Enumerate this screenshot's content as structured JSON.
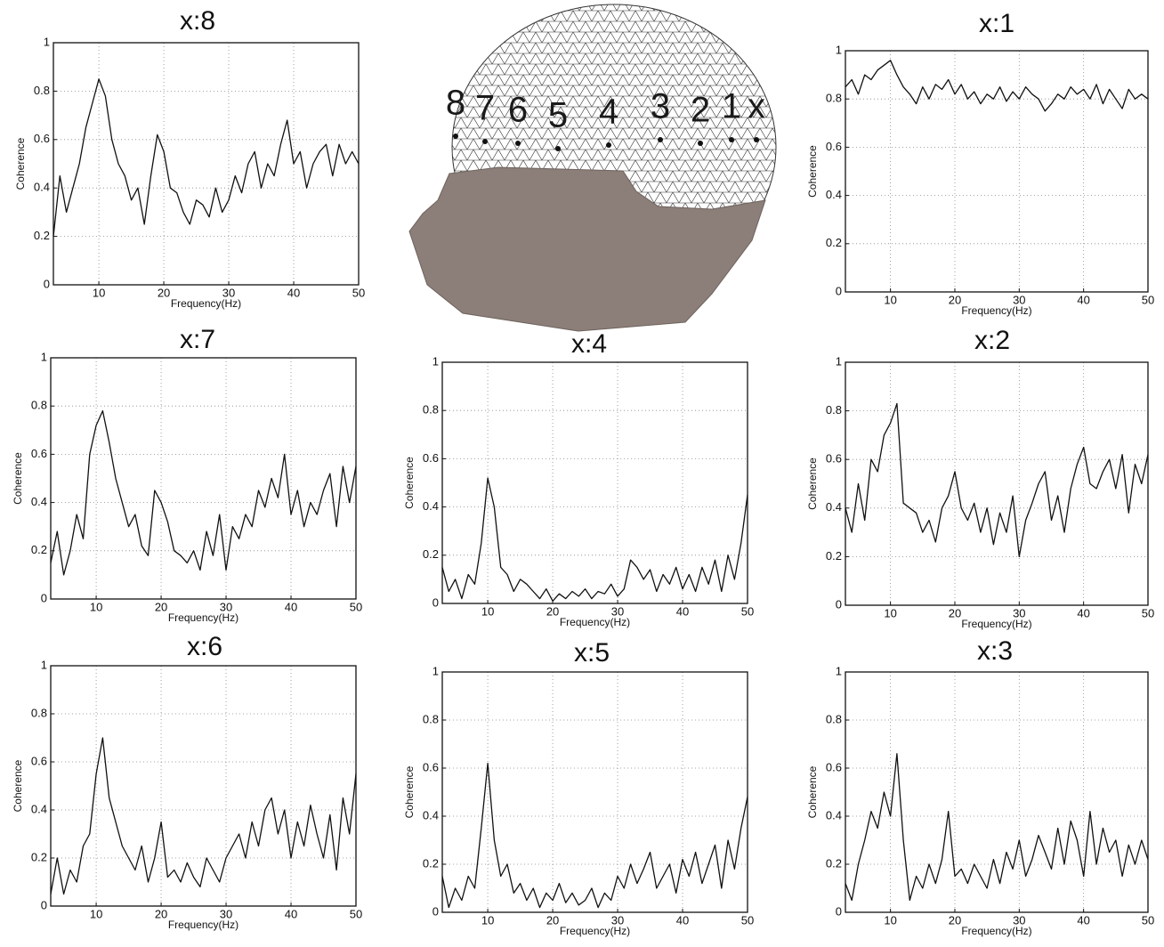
{
  "chart_data": [
    {
      "type": "line",
      "title": "x:8",
      "xlabel": "Frequency(Hz)",
      "ylabel": "Coherence",
      "color": "#111111",
      "grid": true,
      "xlim": [
        3,
        50
      ],
      "ylim": [
        0,
        1
      ],
      "xticks": [
        10,
        20,
        30,
        40,
        50
      ],
      "yticks": [
        0,
        0.2,
        0.4,
        0.6,
        0.8,
        1
      ],
      "x": [
        3,
        4,
        5,
        6,
        7,
        8,
        9,
        10,
        11,
        12,
        13,
        14,
        15,
        16,
        17,
        18,
        19,
        20,
        21,
        22,
        23,
        24,
        25,
        26,
        27,
        28,
        29,
        30,
        31,
        32,
        33,
        34,
        35,
        36,
        37,
        38,
        39,
        40,
        41,
        42,
        43,
        44,
        45,
        46,
        47,
        48,
        49,
        50
      ],
      "values": [
        0.2,
        0.45,
        0.3,
        0.4,
        0.5,
        0.65,
        0.75,
        0.85,
        0.78,
        0.6,
        0.5,
        0.45,
        0.35,
        0.4,
        0.25,
        0.45,
        0.62,
        0.55,
        0.4,
        0.38,
        0.3,
        0.25,
        0.35,
        0.33,
        0.28,
        0.4,
        0.3,
        0.35,
        0.45,
        0.38,
        0.5,
        0.55,
        0.4,
        0.5,
        0.45,
        0.58,
        0.68,
        0.5,
        0.55,
        0.4,
        0.5,
        0.55,
        0.58,
        0.45,
        0.58,
        0.5,
        0.55,
        0.5
      ]
    },
    {
      "type": "line",
      "title": "x:1",
      "xlabel": "Frequency(Hz)",
      "ylabel": "Coherence",
      "color": "#111111",
      "grid": true,
      "xlim": [
        3,
        50
      ],
      "ylim": [
        0,
        1
      ],
      "xticks": [
        10,
        20,
        30,
        40,
        50
      ],
      "yticks": [
        0,
        0.2,
        0.4,
        0.6,
        0.8,
        1
      ],
      "x": [
        3,
        4,
        5,
        6,
        7,
        8,
        9,
        10,
        11,
        12,
        13,
        14,
        15,
        16,
        17,
        18,
        19,
        20,
        21,
        22,
        23,
        24,
        25,
        26,
        27,
        28,
        29,
        30,
        31,
        32,
        33,
        34,
        35,
        36,
        37,
        38,
        39,
        40,
        41,
        42,
        43,
        44,
        45,
        46,
        47,
        48,
        49,
        50
      ],
      "values": [
        0.85,
        0.88,
        0.82,
        0.9,
        0.88,
        0.92,
        0.94,
        0.96,
        0.9,
        0.85,
        0.82,
        0.78,
        0.85,
        0.8,
        0.86,
        0.84,
        0.88,
        0.82,
        0.86,
        0.8,
        0.83,
        0.78,
        0.82,
        0.8,
        0.85,
        0.79,
        0.83,
        0.8,
        0.85,
        0.82,
        0.8,
        0.75,
        0.78,
        0.82,
        0.8,
        0.85,
        0.82,
        0.84,
        0.8,
        0.86,
        0.78,
        0.84,
        0.8,
        0.76,
        0.84,
        0.8,
        0.82,
        0.8
      ]
    },
    {
      "type": "line",
      "title": "x:7",
      "xlabel": "Frequency(Hz)",
      "ylabel": "Coherence",
      "color": "#111111",
      "grid": true,
      "xlim": [
        3,
        50
      ],
      "ylim": [
        0,
        1
      ],
      "xticks": [
        10,
        20,
        30,
        40,
        50
      ],
      "yticks": [
        0,
        0.2,
        0.4,
        0.6,
        0.8,
        1
      ],
      "x": [
        3,
        4,
        5,
        6,
        7,
        8,
        9,
        10,
        11,
        12,
        13,
        14,
        15,
        16,
        17,
        18,
        19,
        20,
        21,
        22,
        23,
        24,
        25,
        26,
        27,
        28,
        29,
        30,
        31,
        32,
        33,
        34,
        35,
        36,
        37,
        38,
        39,
        40,
        41,
        42,
        43,
        44,
        45,
        46,
        47,
        48,
        49,
        50
      ],
      "values": [
        0.15,
        0.28,
        0.1,
        0.2,
        0.35,
        0.25,
        0.6,
        0.72,
        0.78,
        0.65,
        0.5,
        0.4,
        0.3,
        0.35,
        0.22,
        0.18,
        0.45,
        0.4,
        0.32,
        0.2,
        0.18,
        0.15,
        0.2,
        0.12,
        0.28,
        0.18,
        0.35,
        0.12,
        0.3,
        0.25,
        0.35,
        0.3,
        0.45,
        0.38,
        0.5,
        0.42,
        0.6,
        0.35,
        0.45,
        0.3,
        0.4,
        0.35,
        0.45,
        0.52,
        0.3,
        0.55,
        0.4,
        0.55
      ]
    },
    {
      "type": "line",
      "title": "x:4",
      "xlabel": "Frequency(Hz)",
      "ylabel": "Coherence",
      "color": "#111111",
      "grid": true,
      "xlim": [
        3,
        50
      ],
      "ylim": [
        0,
        1
      ],
      "xticks": [
        10,
        20,
        30,
        40,
        50
      ],
      "yticks": [
        0,
        0.2,
        0.4,
        0.6,
        0.8,
        1
      ],
      "x": [
        3,
        4,
        5,
        6,
        7,
        8,
        9,
        10,
        11,
        12,
        13,
        14,
        15,
        16,
        17,
        18,
        19,
        20,
        21,
        22,
        23,
        24,
        25,
        26,
        27,
        28,
        29,
        30,
        31,
        32,
        33,
        34,
        35,
        36,
        37,
        38,
        39,
        40,
        41,
        42,
        43,
        44,
        45,
        46,
        47,
        48,
        49,
        50
      ],
      "values": [
        0.15,
        0.05,
        0.1,
        0.02,
        0.12,
        0.08,
        0.25,
        0.52,
        0.4,
        0.15,
        0.12,
        0.05,
        0.1,
        0.08,
        0.05,
        0.02,
        0.06,
        0.01,
        0.04,
        0.02,
        0.05,
        0.03,
        0.06,
        0.02,
        0.05,
        0.04,
        0.08,
        0.03,
        0.06,
        0.18,
        0.15,
        0.1,
        0.14,
        0.05,
        0.12,
        0.08,
        0.15,
        0.06,
        0.12,
        0.05,
        0.15,
        0.08,
        0.18,
        0.05,
        0.2,
        0.1,
        0.25,
        0.45
      ]
    },
    {
      "type": "line",
      "title": "x:2",
      "xlabel": "Frequency(Hz)",
      "ylabel": "Coherence",
      "color": "#111111",
      "grid": true,
      "xlim": [
        3,
        50
      ],
      "ylim": [
        0,
        1
      ],
      "xticks": [
        10,
        20,
        30,
        40,
        50
      ],
      "yticks": [
        0,
        0.2,
        0.4,
        0.6,
        0.8,
        1
      ],
      "x": [
        3,
        4,
        5,
        6,
        7,
        8,
        9,
        10,
        11,
        12,
        13,
        14,
        15,
        16,
        17,
        18,
        19,
        20,
        21,
        22,
        23,
        24,
        25,
        26,
        27,
        28,
        29,
        30,
        31,
        32,
        33,
        34,
        35,
        36,
        37,
        38,
        39,
        40,
        41,
        42,
        43,
        44,
        45,
        46,
        47,
        48,
        49,
        50
      ],
      "values": [
        0.4,
        0.3,
        0.5,
        0.35,
        0.6,
        0.55,
        0.7,
        0.75,
        0.83,
        0.42,
        0.4,
        0.38,
        0.3,
        0.35,
        0.26,
        0.4,
        0.45,
        0.55,
        0.4,
        0.35,
        0.42,
        0.3,
        0.4,
        0.25,
        0.38,
        0.3,
        0.45,
        0.2,
        0.35,
        0.42,
        0.5,
        0.55,
        0.35,
        0.45,
        0.3,
        0.48,
        0.58,
        0.65,
        0.5,
        0.48,
        0.55,
        0.6,
        0.48,
        0.62,
        0.38,
        0.58,
        0.5,
        0.62
      ]
    },
    {
      "type": "line",
      "title": "x:6",
      "xlabel": "Frequency(Hz)",
      "ylabel": "Coherence",
      "color": "#111111",
      "grid": true,
      "xlim": [
        3,
        50
      ],
      "ylim": [
        0,
        1
      ],
      "xticks": [
        10,
        20,
        30,
        40,
        50
      ],
      "yticks": [
        0,
        0.2,
        0.4,
        0.6,
        0.8,
        1
      ],
      "x": [
        3,
        4,
        5,
        6,
        7,
        8,
        9,
        10,
        11,
        12,
        13,
        14,
        15,
        16,
        17,
        18,
        19,
        20,
        21,
        22,
        23,
        24,
        25,
        26,
        27,
        28,
        29,
        30,
        31,
        32,
        33,
        34,
        35,
        36,
        37,
        38,
        39,
        40,
        41,
        42,
        43,
        44,
        45,
        46,
        47,
        48,
        49,
        50
      ],
      "values": [
        0.05,
        0.2,
        0.05,
        0.15,
        0.1,
        0.25,
        0.3,
        0.55,
        0.7,
        0.45,
        0.35,
        0.25,
        0.2,
        0.15,
        0.25,
        0.1,
        0.2,
        0.35,
        0.12,
        0.15,
        0.1,
        0.18,
        0.12,
        0.08,
        0.2,
        0.15,
        0.1,
        0.2,
        0.25,
        0.3,
        0.2,
        0.35,
        0.25,
        0.4,
        0.45,
        0.3,
        0.4,
        0.2,
        0.35,
        0.25,
        0.42,
        0.3,
        0.2,
        0.38,
        0.15,
        0.45,
        0.3,
        0.55
      ]
    },
    {
      "type": "line",
      "title": "x:5",
      "xlabel": "Frequency(Hz)",
      "ylabel": "Coherence",
      "color": "#111111",
      "grid": true,
      "xlim": [
        3,
        50
      ],
      "ylim": [
        0,
        1
      ],
      "xticks": [
        10,
        20,
        30,
        40,
        50
      ],
      "yticks": [
        0,
        0.2,
        0.4,
        0.6,
        0.8,
        1
      ],
      "x": [
        3,
        4,
        5,
        6,
        7,
        8,
        9,
        10,
        11,
        12,
        13,
        14,
        15,
        16,
        17,
        18,
        19,
        20,
        21,
        22,
        23,
        24,
        25,
        26,
        27,
        28,
        29,
        30,
        31,
        32,
        33,
        34,
        35,
        36,
        37,
        38,
        39,
        40,
        41,
        42,
        43,
        44,
        45,
        46,
        47,
        48,
        49,
        50
      ],
      "values": [
        0.15,
        0.02,
        0.1,
        0.05,
        0.15,
        0.1,
        0.35,
        0.62,
        0.3,
        0.15,
        0.2,
        0.08,
        0.12,
        0.05,
        0.1,
        0.02,
        0.08,
        0.05,
        0.12,
        0.04,
        0.08,
        0.03,
        0.05,
        0.1,
        0.02,
        0.08,
        0.05,
        0.15,
        0.1,
        0.2,
        0.12,
        0.18,
        0.25,
        0.1,
        0.15,
        0.2,
        0.08,
        0.22,
        0.15,
        0.25,
        0.12,
        0.2,
        0.28,
        0.1,
        0.3,
        0.18,
        0.35,
        0.48
      ]
    },
    {
      "type": "line",
      "title": "x:3",
      "xlabel": "Frequency(Hz)",
      "ylabel": "Coherence",
      "color": "#111111",
      "grid": true,
      "xlim": [
        3,
        50
      ],
      "ylim": [
        0,
        1
      ],
      "xticks": [
        10,
        20,
        30,
        40,
        50
      ],
      "yticks": [
        0,
        0.2,
        0.4,
        0.6,
        0.8,
        1
      ],
      "x": [
        3,
        4,
        5,
        6,
        7,
        8,
        9,
        10,
        11,
        12,
        13,
        14,
        15,
        16,
        17,
        18,
        19,
        20,
        21,
        22,
        23,
        24,
        25,
        26,
        27,
        28,
        29,
        30,
        31,
        32,
        33,
        34,
        35,
        36,
        37,
        38,
        39,
        40,
        41,
        42,
        43,
        44,
        45,
        46,
        47,
        48,
        49,
        50
      ],
      "values": [
        0.12,
        0.05,
        0.2,
        0.3,
        0.42,
        0.35,
        0.5,
        0.4,
        0.66,
        0.3,
        0.05,
        0.15,
        0.1,
        0.2,
        0.12,
        0.22,
        0.42,
        0.15,
        0.18,
        0.12,
        0.2,
        0.15,
        0.1,
        0.22,
        0.12,
        0.25,
        0.18,
        0.3,
        0.15,
        0.22,
        0.32,
        0.25,
        0.18,
        0.35,
        0.2,
        0.38,
        0.3,
        0.15,
        0.42,
        0.2,
        0.35,
        0.25,
        0.3,
        0.15,
        0.28,
        0.2,
        0.3,
        0.22
      ]
    }
  ],
  "head": {
    "electrode_labels": [
      "8",
      "7",
      "6",
      "5",
      "4",
      "3",
      "2",
      "1",
      "x"
    ]
  }
}
